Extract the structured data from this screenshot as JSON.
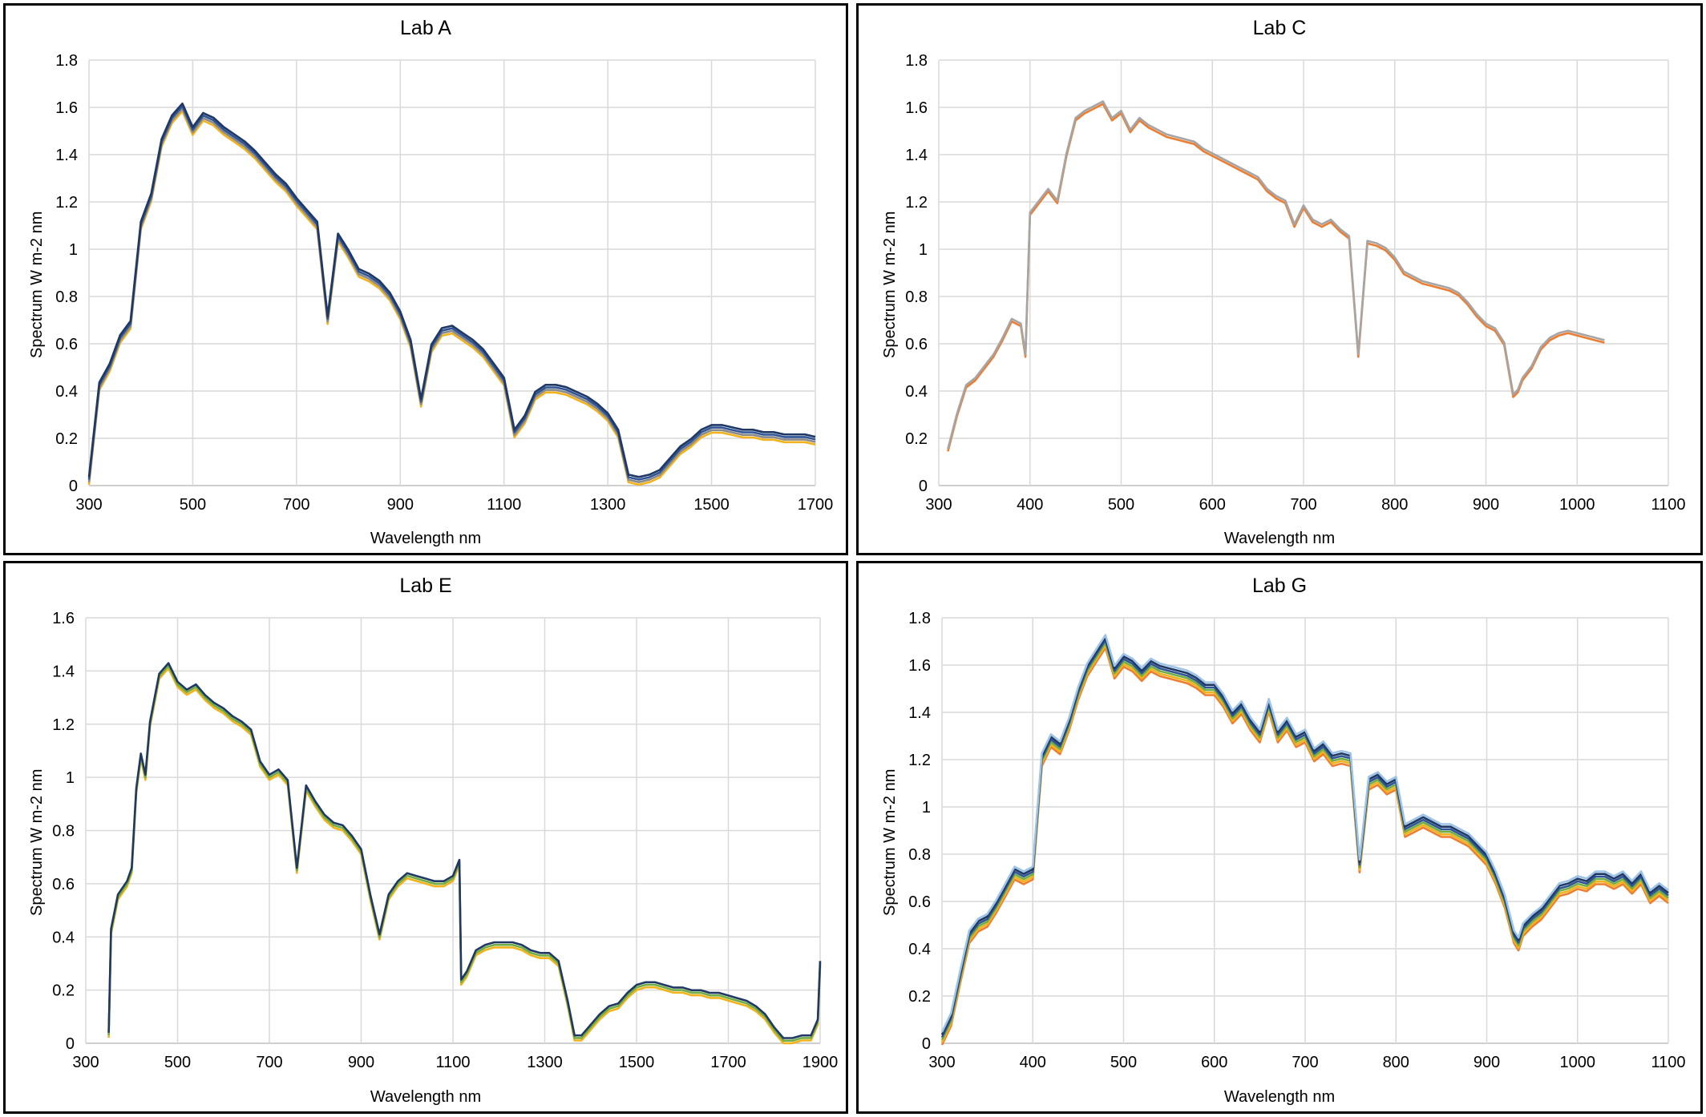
{
  "chart_data": [
    {
      "type": "line",
      "title": "Lab A",
      "xlabel": "Wavelength nm",
      "ylabel": "Spectrum W m-2 nm",
      "xlim": [
        300,
        1700
      ],
      "ylim": [
        0,
        1.8
      ],
      "xticks": [
        300,
        500,
        700,
        900,
        1100,
        1300,
        1500,
        1700
      ],
      "yticks": [
        0,
        0.2,
        0.4,
        0.6,
        0.8,
        1,
        1.2,
        1.4,
        1.6,
        1.8
      ],
      "ytick_labels": [
        "0",
        "0.2",
        "0.4",
        "0.6",
        "0.8",
        "1",
        "1.2",
        "1.4",
        "1.6",
        "1.8"
      ],
      "grid": true,
      "legend": "none",
      "series_colors": [
        "#f2b21b",
        "#8a8a8a",
        "#2f5597",
        "#1f3864"
      ],
      "x": [
        300,
        320,
        340,
        360,
        380,
        400,
        420,
        440,
        460,
        480,
        500,
        520,
        540,
        560,
        580,
        600,
        620,
        640,
        660,
        680,
        700,
        720,
        740,
        760,
        780,
        800,
        820,
        840,
        860,
        880,
        900,
        920,
        940,
        960,
        980,
        1000,
        1020,
        1040,
        1060,
        1080,
        1100,
        1120,
        1140,
        1160,
        1180,
        1200,
        1220,
        1240,
        1260,
        1280,
        1300,
        1320,
        1340,
        1360,
        1380,
        1400,
        1420,
        1440,
        1460,
        1480,
        1500,
        1520,
        1540,
        1560,
        1580,
        1600,
        1620,
        1640,
        1660,
        1680,
        1700
      ],
      "y": [
        0.02,
        0.42,
        0.5,
        0.62,
        0.68,
        1.1,
        1.22,
        1.45,
        1.55,
        1.6,
        1.5,
        1.56,
        1.54,
        1.5,
        1.47,
        1.44,
        1.4,
        1.35,
        1.3,
        1.26,
        1.2,
        1.15,
        1.1,
        0.7,
        1.05,
        0.98,
        0.9,
        0.88,
        0.85,
        0.8,
        0.72,
        0.6,
        0.35,
        0.58,
        0.65,
        0.66,
        0.63,
        0.6,
        0.56,
        0.5,
        0.44,
        0.22,
        0.28,
        0.38,
        0.41,
        0.41,
        0.4,
        0.38,
        0.36,
        0.33,
        0.29,
        0.22,
        0.03,
        0.02,
        0.03,
        0.05,
        0.1,
        0.15,
        0.18,
        0.22,
        0.24,
        0.24,
        0.23,
        0.22,
        0.22,
        0.21,
        0.21,
        0.2,
        0.2,
        0.2,
        0.19
      ]
    },
    {
      "type": "line",
      "title": "Lab C",
      "xlabel": "Wavelength nm",
      "ylabel": "Spectrum W m-2 nm",
      "xlim": [
        300,
        1100
      ],
      "ylim": [
        0,
        1.8
      ],
      "xticks": [
        300,
        400,
        500,
        600,
        700,
        800,
        900,
        1000,
        1100
      ],
      "yticks": [
        0,
        0.2,
        0.4,
        0.6,
        0.8,
        1,
        1.2,
        1.4,
        1.6,
        1.8
      ],
      "ytick_labels": [
        "0",
        "0.2",
        "0.4",
        "0.6",
        "0.8",
        "1",
        "1.2",
        "1.4",
        "1.6",
        "1.8"
      ],
      "grid": true,
      "legend": "none",
      "series_colors": [
        "#ed7d31",
        "#a5a5a5"
      ],
      "x": [
        310,
        320,
        330,
        340,
        350,
        360,
        370,
        380,
        390,
        395,
        400,
        410,
        420,
        430,
        440,
        450,
        460,
        470,
        480,
        490,
        500,
        510,
        520,
        530,
        540,
        550,
        560,
        570,
        580,
        590,
        600,
        610,
        620,
        630,
        640,
        650,
        660,
        670,
        680,
        690,
        700,
        710,
        720,
        730,
        740,
        750,
        760,
        770,
        780,
        790,
        800,
        810,
        820,
        830,
        840,
        850,
        860,
        870,
        880,
        890,
        900,
        910,
        920,
        930,
        935,
        940,
        950,
        960,
        970,
        980,
        990,
        1000,
        1010,
        1020,
        1030
      ],
      "y": [
        0.15,
        0.3,
        0.42,
        0.45,
        0.5,
        0.55,
        0.62,
        0.7,
        0.68,
        0.55,
        1.15,
        1.2,
        1.25,
        1.2,
        1.4,
        1.55,
        1.58,
        1.6,
        1.62,
        1.55,
        1.58,
        1.5,
        1.55,
        1.52,
        1.5,
        1.48,
        1.47,
        1.46,
        1.45,
        1.42,
        1.4,
        1.38,
        1.36,
        1.34,
        1.32,
        1.3,
        1.25,
        1.22,
        1.2,
        1.1,
        1.18,
        1.12,
        1.1,
        1.12,
        1.08,
        1.05,
        0.55,
        1.03,
        1.02,
        1.0,
        0.96,
        0.9,
        0.88,
        0.86,
        0.85,
        0.84,
        0.83,
        0.81,
        0.77,
        0.72,
        0.68,
        0.66,
        0.6,
        0.38,
        0.4,
        0.45,
        0.5,
        0.58,
        0.62,
        0.64,
        0.65,
        0.64,
        0.63,
        0.62,
        0.61
      ]
    },
    {
      "type": "line",
      "title": "Lab E",
      "xlabel": "Wavelength nm",
      "ylabel": "Spectrum W m-2 nm",
      "xlim": [
        300,
        1900
      ],
      "ylim": [
        0,
        1.6
      ],
      "xticks": [
        300,
        500,
        700,
        900,
        1100,
        1300,
        1500,
        1700,
        1900
      ],
      "yticks": [
        0,
        0.2,
        0.4,
        0.6,
        0.8,
        1,
        1.2,
        1.4,
        1.6
      ],
      "ytick_labels": [
        "0",
        "0.2",
        "0.4",
        "0.6",
        "0.8",
        "1",
        "1.2",
        "1.4",
        "1.6"
      ],
      "grid": true,
      "legend": "none",
      "series_colors": [
        "#f2b21b",
        "#70ad47",
        "#1f3864"
      ],
      "x": [
        350,
        355,
        370,
        390,
        400,
        410,
        420,
        430,
        440,
        460,
        480,
        500,
        520,
        540,
        560,
        580,
        600,
        620,
        640,
        660,
        680,
        700,
        720,
        740,
        760,
        780,
        800,
        820,
        840,
        860,
        880,
        900,
        920,
        940,
        960,
        980,
        1000,
        1020,
        1040,
        1060,
        1080,
        1100,
        1114,
        1118,
        1130,
        1150,
        1170,
        1190,
        1210,
        1230,
        1250,
        1270,
        1290,
        1310,
        1330,
        1350,
        1365,
        1380,
        1400,
        1420,
        1440,
        1460,
        1480,
        1500,
        1520,
        1540,
        1560,
        1580,
        1600,
        1620,
        1640,
        1660,
        1680,
        1700,
        1720,
        1740,
        1760,
        1780,
        1800,
        1820,
        1840,
        1860,
        1880,
        1895,
        1900
      ],
      "y": [
        0.03,
        0.42,
        0.55,
        0.6,
        0.65,
        0.95,
        1.08,
        1.0,
        1.2,
        1.38,
        1.42,
        1.35,
        1.32,
        1.34,
        1.3,
        1.27,
        1.25,
        1.22,
        1.2,
        1.17,
        1.05,
        1.0,
        1.02,
        0.98,
        0.65,
        0.96,
        0.9,
        0.85,
        0.82,
        0.81,
        0.77,
        0.72,
        0.55,
        0.4,
        0.55,
        0.6,
        0.63,
        0.62,
        0.61,
        0.6,
        0.6,
        0.62,
        0.68,
        0.23,
        0.26,
        0.34,
        0.36,
        0.37,
        0.37,
        0.37,
        0.36,
        0.34,
        0.33,
        0.33,
        0.3,
        0.15,
        0.02,
        0.02,
        0.06,
        0.1,
        0.13,
        0.14,
        0.18,
        0.21,
        0.22,
        0.22,
        0.21,
        0.2,
        0.2,
        0.19,
        0.19,
        0.18,
        0.18,
        0.17,
        0.16,
        0.15,
        0.13,
        0.1,
        0.05,
        0.01,
        0.01,
        0.02,
        0.02,
        0.08,
        0.3
      ]
    },
    {
      "type": "line",
      "title": "Lab G",
      "xlabel": "Wavelength nm",
      "ylabel": "Spectrum W m-2 nm",
      "xlim": [
        300,
        1100
      ],
      "ylim": [
        0,
        1.8
      ],
      "xticks": [
        300,
        400,
        500,
        600,
        700,
        800,
        900,
        1000,
        1100
      ],
      "yticks": [
        0,
        0.2,
        0.4,
        0.6,
        0.8,
        1,
        1.2,
        1.4,
        1.6,
        1.8
      ],
      "ytick_labels": [
        "0",
        "0.2",
        "0.4",
        "0.6",
        "0.8",
        "1",
        "1.2",
        "1.4",
        "1.6",
        "1.8"
      ],
      "grid": true,
      "legend": "none",
      "series_colors": [
        "#ed7d31",
        "#f2b21b",
        "#70ad47",
        "#2f5597",
        "#1f3864",
        "#9dc3e6"
      ],
      "x": [
        300,
        310,
        320,
        330,
        340,
        350,
        360,
        370,
        380,
        390,
        400,
        410,
        420,
        430,
        440,
        450,
        460,
        470,
        480,
        490,
        500,
        510,
        520,
        530,
        540,
        550,
        560,
        570,
        580,
        590,
        600,
        610,
        620,
        630,
        640,
        650,
        660,
        670,
        680,
        690,
        700,
        710,
        720,
        730,
        740,
        750,
        760,
        770,
        780,
        790,
        800,
        810,
        820,
        830,
        840,
        850,
        860,
        870,
        880,
        890,
        900,
        910,
        920,
        930,
        935,
        940,
        950,
        960,
        970,
        980,
        990,
        1000,
        1010,
        1020,
        1030,
        1040,
        1050,
        1060,
        1070,
        1080,
        1090,
        1100
      ],
      "y": [
        0.02,
        0.1,
        0.28,
        0.45,
        0.5,
        0.52,
        0.58,
        0.65,
        0.72,
        0.7,
        0.72,
        1.2,
        1.28,
        1.25,
        1.35,
        1.48,
        1.58,
        1.64,
        1.7,
        1.57,
        1.62,
        1.6,
        1.56,
        1.6,
        1.58,
        1.57,
        1.56,
        1.55,
        1.53,
        1.5,
        1.5,
        1.45,
        1.38,
        1.42,
        1.35,
        1.3,
        1.43,
        1.3,
        1.35,
        1.28,
        1.3,
        1.22,
        1.25,
        1.2,
        1.21,
        1.2,
        0.75,
        1.1,
        1.12,
        1.08,
        1.1,
        0.9,
        0.92,
        0.94,
        0.92,
        0.9,
        0.9,
        0.88,
        0.86,
        0.82,
        0.78,
        0.7,
        0.6,
        0.45,
        0.42,
        0.48,
        0.52,
        0.55,
        0.6,
        0.65,
        0.66,
        0.68,
        0.67,
        0.7,
        0.7,
        0.68,
        0.7,
        0.66,
        0.7,
        0.62,
        0.65,
        0.62
      ]
    }
  ]
}
